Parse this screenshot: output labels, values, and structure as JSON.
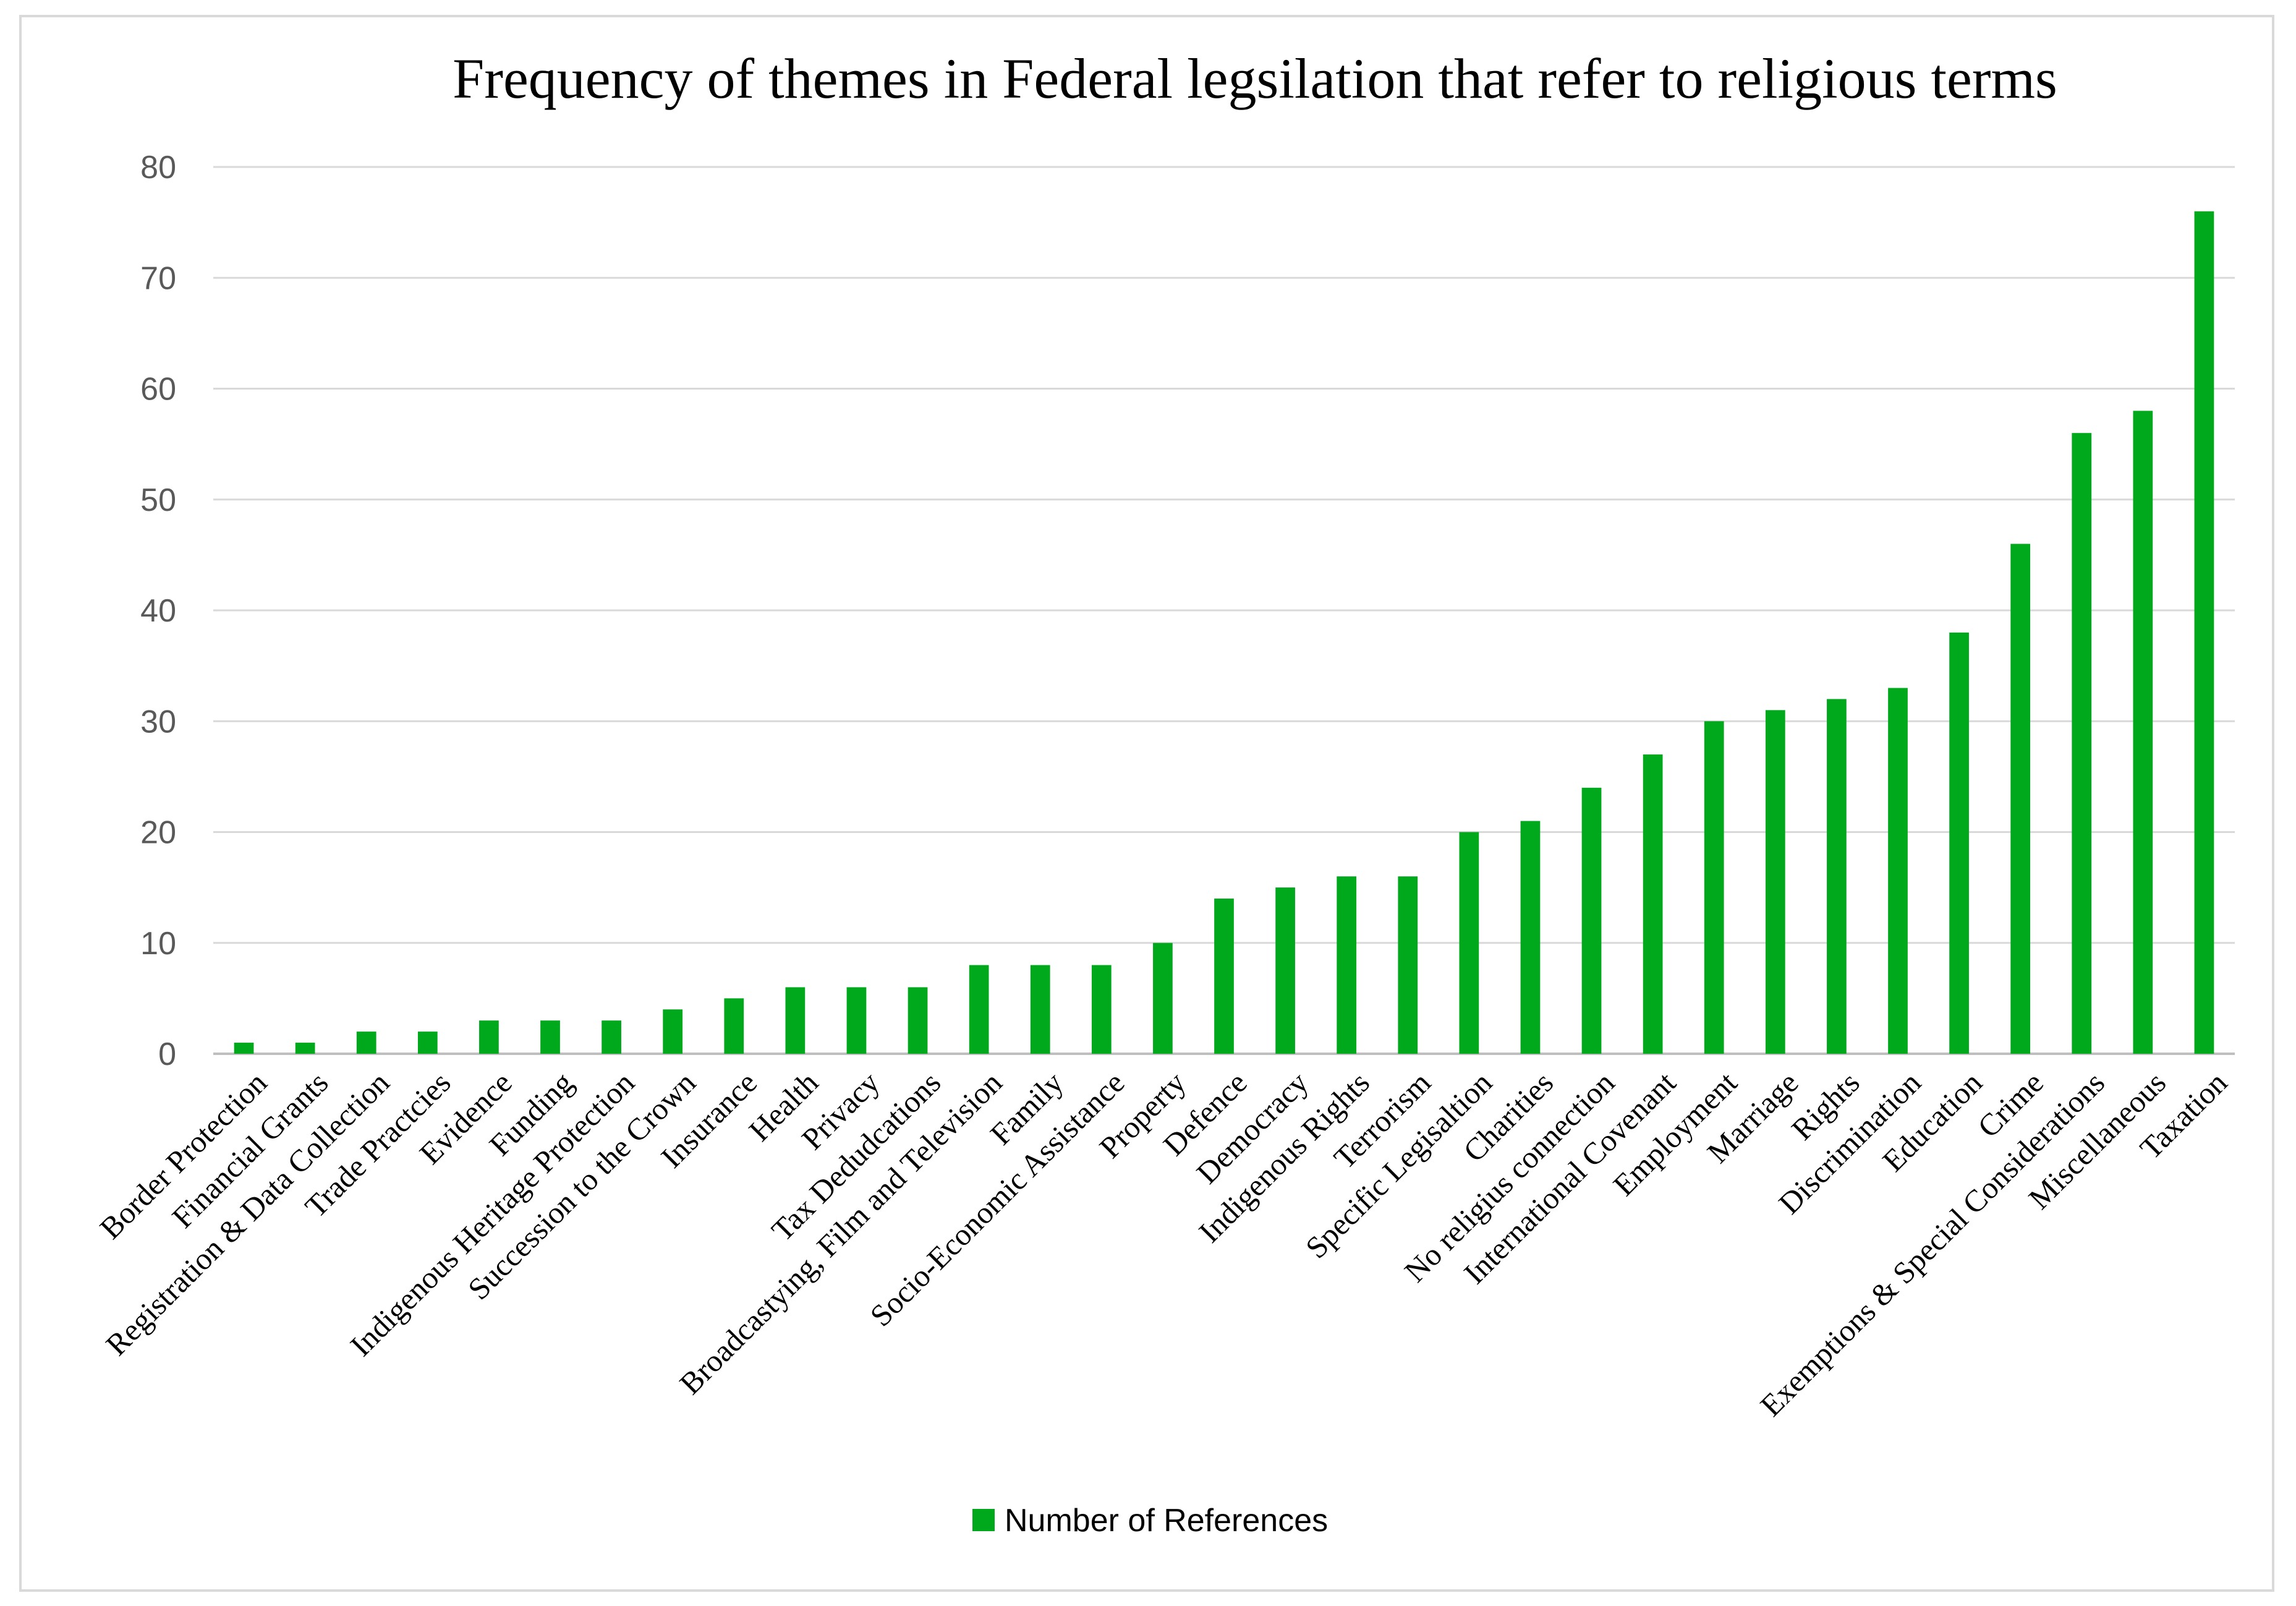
{
  "chart_data": {
    "type": "bar",
    "title": "Frequency of themes in Federal legsilation that refer to religious terms",
    "xlabel": "",
    "ylabel": "",
    "ylim": [
      0,
      80
    ],
    "yticks": [
      "0",
      "10",
      "20",
      "30",
      "40",
      "50",
      "60",
      "70",
      "80"
    ],
    "grid": true,
    "legend_position": "bottom",
    "categories": [
      "Border Protection",
      "Financial Grants",
      "Registration & Data Collection",
      "Trade Practcies",
      "Evidence",
      "Funding",
      "Indigenous Heritage Protection",
      "Succession to the Crown",
      "Insurance",
      "Health",
      "Privacy",
      "Tax Dedudcations",
      "Broadcastying, Film and Television",
      "Family",
      "Socio-Economic Assistance",
      "Property",
      "Defence",
      "Democracy",
      "Indigenous Rights",
      "Terrorism",
      "Specific Legisaltion",
      "Charities",
      "No religius connection",
      "International Covenant",
      "Employment",
      "Marriage",
      "Rights",
      "Discrimination",
      "Education",
      "Crime",
      "Exemptions & Special Considerations",
      "Miscellaneous",
      "Taxation"
    ],
    "series": [
      {
        "name": "Number of References",
        "color": "#00a81c",
        "values": [
          1,
          1,
          2,
          2,
          3,
          3,
          3,
          4,
          5,
          6,
          6,
          6,
          8,
          8,
          8,
          10,
          14,
          15,
          16,
          16,
          20,
          21,
          24,
          27,
          30,
          31,
          32,
          33,
          38,
          46,
          56,
          58,
          76
        ]
      }
    ]
  },
  "colors": {
    "bar": "#00a81c",
    "grid": "#d9d9d9",
    "tick_text": "#595959"
  }
}
